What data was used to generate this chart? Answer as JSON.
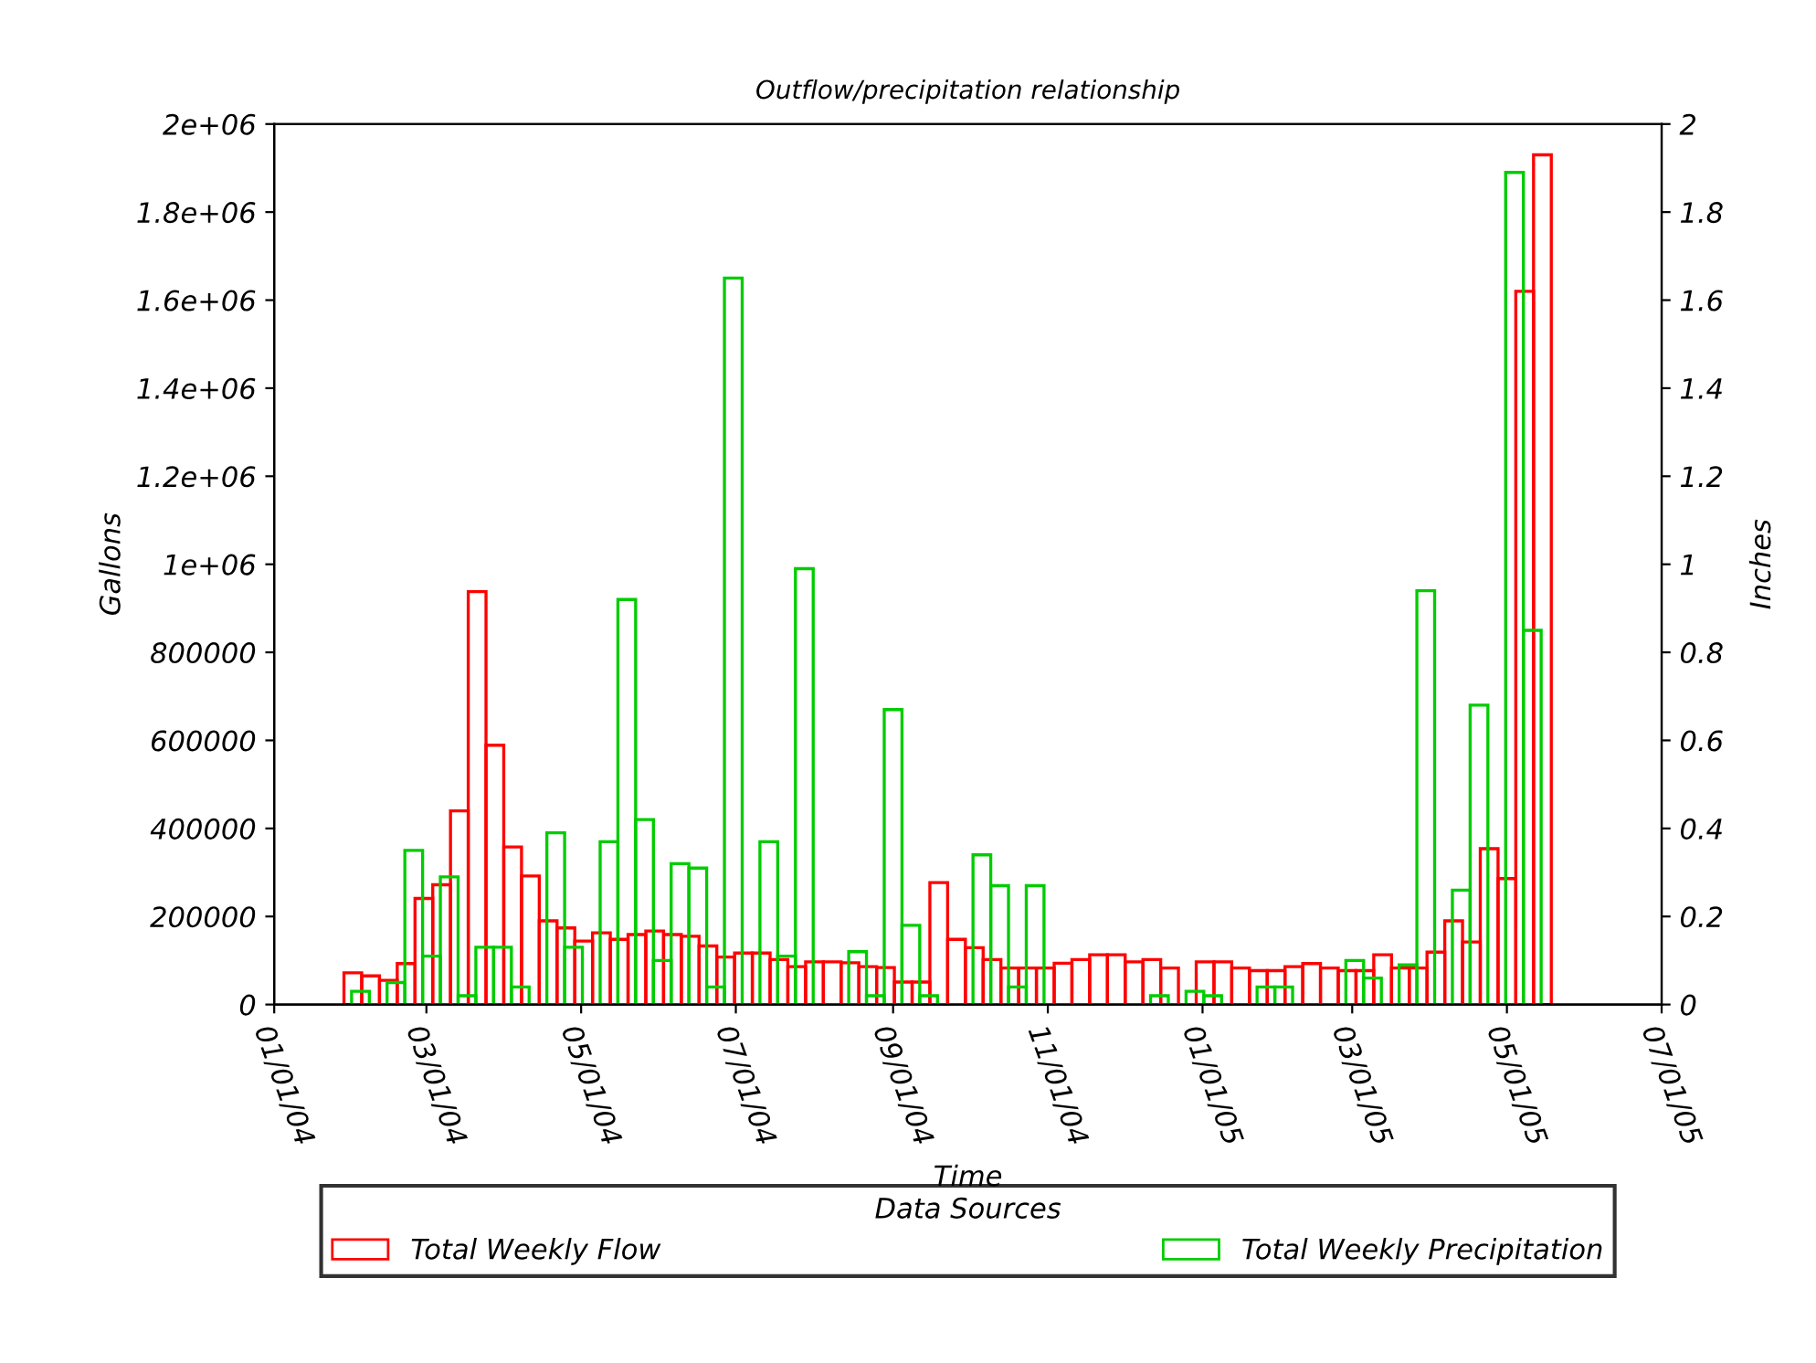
{
  "chart_data": {
    "type": "bar",
    "title": "Outflow/precipitation relationship",
    "xlabel": "Time",
    "ylabel": "Gallons",
    "y2label": "Inches",
    "legend_title": "Data Sources",
    "legend": "bottom",
    "grid": false,
    "xlim": [
      "2004-01-01",
      "2005-07-01"
    ],
    "xticks": [
      {
        "value": "2004-01-01",
        "label": "01/01/04"
      },
      {
        "value": "2004-03-01",
        "label": "03/01/04"
      },
      {
        "value": "2004-05-01",
        "label": "05/01/04"
      },
      {
        "value": "2004-07-01",
        "label": "07/01/04"
      },
      {
        "value": "2004-09-01",
        "label": "09/01/04"
      },
      {
        "value": "2004-11-01",
        "label": "11/01/04"
      },
      {
        "value": "2005-01-01",
        "label": "01/01/05"
      },
      {
        "value": "2005-03-01",
        "label": "03/01/05"
      },
      {
        "value": "2005-05-01",
        "label": "05/01/05"
      },
      {
        "value": "2005-07-01",
        "label": "07/01/05"
      }
    ],
    "ylim": [
      0,
      2000000
    ],
    "yticks": [
      0,
      200000,
      400000,
      600000,
      800000,
      {
        "value": 1000000,
        "label": "1e+06"
      },
      {
        "value": 1200000,
        "label": "1.2e+06"
      },
      {
        "value": 1400000,
        "label": "1.4e+06"
      },
      {
        "value": 1600000,
        "label": "1.6e+06"
      },
      {
        "value": 1800000,
        "label": "1.8e+06"
      },
      {
        "value": 2000000,
        "label": "2e+06"
      }
    ],
    "y2lim": [
      0,
      2
    ],
    "y2ticks": [
      0,
      0.2,
      0.4,
      0.6,
      0.8,
      1,
      1.2,
      1.4,
      1.6,
      1.8,
      2
    ],
    "series": [
      {
        "name": "Total Weekly Flow",
        "color": "#ff0000",
        "x": [
          "2004-02-01",
          "2004-02-08",
          "2004-02-15",
          "2004-02-22",
          "2004-02-29",
          "2004-03-07",
          "2004-03-14",
          "2004-03-21",
          "2004-03-28",
          "2004-04-04",
          "2004-04-11",
          "2004-04-18",
          "2004-04-25",
          "2004-05-02",
          "2004-05-09",
          "2004-05-16",
          "2004-05-23",
          "2004-05-30",
          "2004-06-06",
          "2004-06-13",
          "2004-06-20",
          "2004-06-27",
          "2004-07-04",
          "2004-07-11",
          "2004-07-18",
          "2004-07-25",
          "2004-08-01",
          "2004-08-08",
          "2004-08-15",
          "2004-08-22",
          "2004-08-29",
          "2004-09-05",
          "2004-09-12",
          "2004-09-19",
          "2004-09-26",
          "2004-10-03",
          "2004-10-10",
          "2004-10-17",
          "2004-10-24",
          "2004-10-31",
          "2004-11-07",
          "2004-11-14",
          "2004-11-21",
          "2004-11-28",
          "2004-12-05",
          "2004-12-12",
          "2004-12-19",
          "2004-12-26",
          "2005-01-02",
          "2005-01-09",
          "2005-01-16",
          "2005-01-23",
          "2005-01-30",
          "2005-02-06",
          "2005-02-13",
          "2005-02-20",
          "2005-02-27",
          "2005-03-06",
          "2005-03-13",
          "2005-03-20",
          "2005-03-27",
          "2005-04-03",
          "2005-04-10",
          "2005-04-17",
          "2005-04-24",
          "2005-05-01",
          "2005-05-08",
          "2005-05-15"
        ],
        "values": [
          72000,
          65000,
          55000,
          93000,
          241000,
          272000,
          440000,
          938000,
          589000,
          358000,
          292000,
          190000,
          174000,
          144000,
          163000,
          148000,
          159000,
          167000,
          159000,
          155000,
          133000,
          108000,
          117000,
          117000,
          102000,
          86000,
          97000,
          97000,
          95000,
          86000,
          84000,
          51000,
          51000,
          277000,
          148000,
          129000,
          102000,
          83000,
          83000,
          83000,
          94000,
          102000,
          113000,
          113000,
          97000,
          102000,
          83000,
          null,
          97000,
          97000,
          83000,
          77000,
          77000,
          86000,
          93000,
          83000,
          77000,
          77000,
          113000,
          83000,
          83000,
          119000,
          190000,
          142000,
          354000,
          286000,
          1620000,
          1930000
        ]
      },
      {
        "name": "Total Weekly Precipitation",
        "color": "#00cc00",
        "axis": "y2",
        "x": [
          "2004-02-04",
          "2004-02-11",
          "2004-02-18",
          "2004-02-25",
          "2004-03-03",
          "2004-03-10",
          "2004-03-17",
          "2004-03-24",
          "2004-03-31",
          "2004-04-07",
          "2004-04-14",
          "2004-04-21",
          "2004-04-28",
          "2004-05-05",
          "2004-05-12",
          "2004-05-19",
          "2004-05-26",
          "2004-06-02",
          "2004-06-09",
          "2004-06-16",
          "2004-06-23",
          "2004-06-30",
          "2004-07-07",
          "2004-07-14",
          "2004-07-21",
          "2004-07-28",
          "2004-08-04",
          "2004-08-11",
          "2004-08-18",
          "2004-08-25",
          "2004-09-01",
          "2004-09-08",
          "2004-09-15",
          "2004-09-22",
          "2004-09-29",
          "2004-10-06",
          "2004-10-13",
          "2004-10-20",
          "2004-10-27",
          "2004-11-03",
          "2004-11-10",
          "2004-11-17",
          "2004-11-24",
          "2004-12-01",
          "2004-12-08",
          "2004-12-15",
          "2004-12-22",
          "2004-12-29",
          "2005-01-05",
          "2005-01-12",
          "2005-01-19",
          "2005-01-26",
          "2005-02-02",
          "2005-02-09",
          "2005-02-16",
          "2005-02-23",
          "2005-03-02",
          "2005-03-09",
          "2005-03-16",
          "2005-03-23",
          "2005-03-30",
          "2005-04-06",
          "2005-04-13",
          "2005-04-20",
          "2005-04-27",
          "2005-05-04",
          "2005-05-11"
        ],
        "values": [
          0.03,
          0,
          0.05,
          0.35,
          0.11,
          0.29,
          0.02,
          0.13,
          0.13,
          0.04,
          0,
          0.39,
          0.13,
          0,
          0.37,
          0.92,
          0.42,
          0.1,
          0.32,
          0.31,
          0.04,
          1.65,
          0,
          0.37,
          0.11,
          0.99,
          0,
          0,
          0.12,
          0.02,
          0.67,
          0.18,
          0.02,
          0,
          0,
          0.34,
          0.27,
          0.04,
          0.27,
          0,
          0,
          0,
          0,
          0,
          0,
          0.02,
          0,
          0.03,
          0.02,
          0,
          0,
          0.04,
          0.04,
          0,
          0,
          0,
          0.1,
          0.06,
          0,
          0.09,
          0.94,
          0,
          0.26,
          0.68,
          0,
          1.89,
          0.85
        ]
      }
    ]
  }
}
